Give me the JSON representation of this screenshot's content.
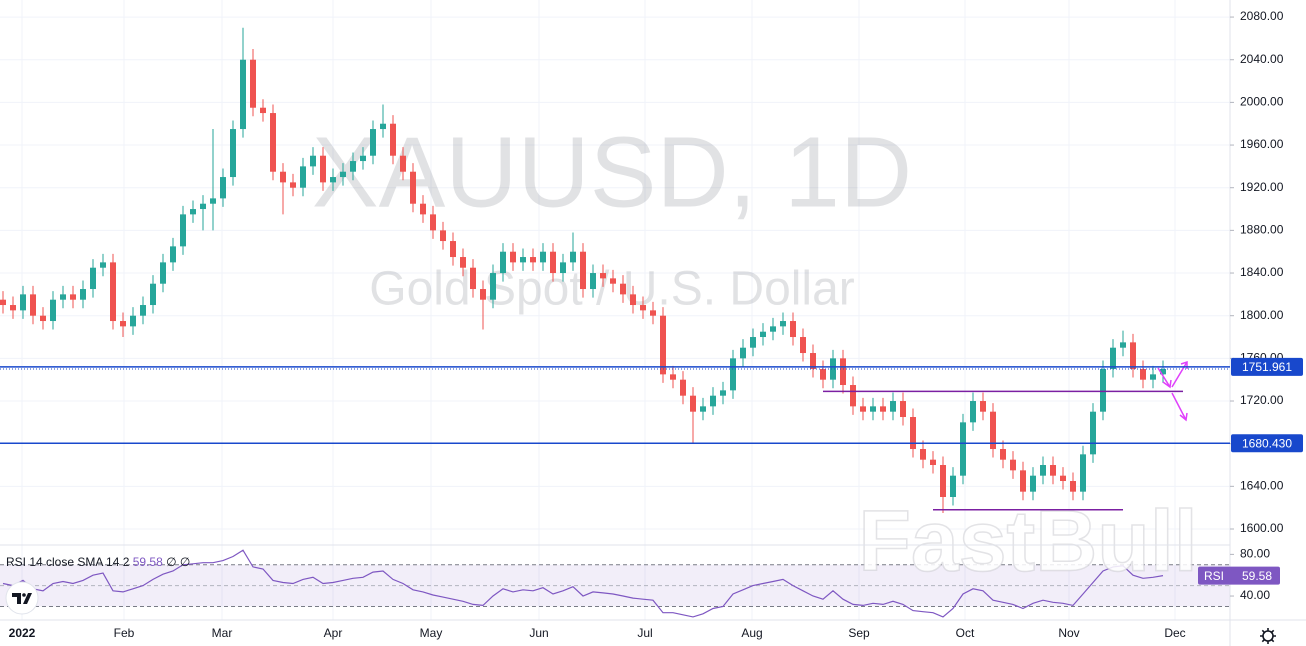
{
  "chart_data": [
    {
      "type": "candlestick",
      "title": "XAUUSD, 1D",
      "subtitle": "Gold Spot / U.S. Dollar",
      "watermark": "FastBull",
      "up_color": "#26a69a",
      "down_color": "#ef5350",
      "x": [
        0,
        1,
        2,
        3,
        4,
        5,
        6,
        7,
        8,
        9,
        10,
        11,
        12,
        13,
        14,
        15,
        16,
        17,
        18,
        19,
        20,
        21,
        22,
        23,
        24,
        25,
        26,
        27,
        28,
        29,
        30,
        31,
        32,
        33,
        34,
        35,
        36,
        37,
        38,
        39,
        40,
        41,
        42,
        43,
        44,
        45,
        46,
        47,
        48,
        49,
        50,
        51,
        52,
        53,
        54,
        55,
        56,
        57,
        58,
        59,
        60,
        61,
        62,
        63,
        64,
        65,
        66,
        67,
        68,
        69,
        70,
        71,
        72,
        73,
        74,
        75,
        76,
        77,
        78,
        79,
        80,
        81,
        82,
        83,
        84,
        85,
        86,
        87,
        88,
        89,
        90,
        91,
        92,
        93,
        94,
        95,
        96,
        97,
        98,
        99,
        100,
        101,
        102,
        103,
        104,
        105,
        106,
        107,
        108,
        109,
        110,
        111,
        112,
        113,
        114,
        115,
        116
      ],
      "open": [
        1815,
        1810,
        1805,
        1820,
        1800,
        1795,
        1815,
        1820,
        1815,
        1825,
        1845,
        1850,
        1795,
        1790,
        1800,
        1810,
        1830,
        1850,
        1865,
        1895,
        1900,
        1905,
        1910,
        1930,
        1975,
        2040,
        1995,
        1990,
        1935,
        1925,
        1920,
        1940,
        1950,
        1925,
        1930,
        1935,
        1945,
        1950,
        1975,
        1980,
        1950,
        1935,
        1905,
        1895,
        1880,
        1870,
        1855,
        1845,
        1825,
        1815,
        1840,
        1860,
        1850,
        1855,
        1850,
        1860,
        1840,
        1850,
        1860,
        1825,
        1840,
        1835,
        1830,
        1820,
        1810,
        1805,
        1800,
        1745,
        1740,
        1725,
        1710,
        1715,
        1725,
        1730,
        1760,
        1770,
        1780,
        1785,
        1790,
        1795,
        1780,
        1765,
        1750,
        1740,
        1760,
        1735,
        1715,
        1710,
        1715,
        1710,
        1720,
        1705,
        1675,
        1665,
        1660,
        1630,
        1650,
        1700,
        1720,
        1710,
        1675,
        1665,
        1655,
        1635,
        1650,
        1660,
        1650,
        1645,
        1635,
        1670,
        1710,
        1750,
        1770,
        1775,
        1750,
        1740,
        1745
      ],
      "high": [
        1823,
        1818,
        1828,
        1828,
        1808,
        1823,
        1828,
        1828,
        1833,
        1853,
        1858,
        1858,
        1803,
        1808,
        1818,
        1838,
        1858,
        1873,
        1903,
        1908,
        1913,
        1975,
        1938,
        1983,
        2070,
        2050,
        2003,
        1998,
        1943,
        1933,
        1948,
        1958,
        1958,
        1938,
        1943,
        1953,
        1958,
        1983,
        1998,
        1988,
        1958,
        1943,
        1913,
        1903,
        1888,
        1878,
        1863,
        1853,
        1833,
        1848,
        1868,
        1868,
        1863,
        1863,
        1868,
        1868,
        1858,
        1878,
        1868,
        1848,
        1848,
        1843,
        1838,
        1828,
        1818,
        1813,
        1808,
        1753,
        1748,
        1733,
        1723,
        1733,
        1738,
        1768,
        1778,
        1788,
        1793,
        1798,
        1803,
        1803,
        1788,
        1773,
        1758,
        1768,
        1768,
        1743,
        1723,
        1723,
        1723,
        1728,
        1728,
        1713,
        1683,
        1673,
        1668,
        1658,
        1708,
        1728,
        1728,
        1718,
        1683,
        1673,
        1663,
        1658,
        1668,
        1668,
        1658,
        1653,
        1678,
        1718,
        1758,
        1778,
        1786,
        1783,
        1758,
        1753,
        1758
      ],
      "low": [
        1802,
        1797,
        1797,
        1792,
        1787,
        1787,
        1807,
        1807,
        1807,
        1817,
        1837,
        1787,
        1780,
        1782,
        1792,
        1802,
        1822,
        1842,
        1857,
        1887,
        1880,
        1880,
        1902,
        1922,
        1967,
        1987,
        1982,
        1927,
        1895,
        1912,
        1912,
        1932,
        1917,
        1917,
        1922,
        1927,
        1937,
        1942,
        1967,
        1942,
        1927,
        1897,
        1887,
        1872,
        1862,
        1847,
        1837,
        1817,
        1787,
        1807,
        1832,
        1842,
        1842,
        1842,
        1842,
        1832,
        1832,
        1842,
        1817,
        1817,
        1827,
        1822,
        1812,
        1802,
        1797,
        1792,
        1737,
        1732,
        1717,
        1681,
        1702,
        1707,
        1717,
        1722,
        1752,
        1762,
        1772,
        1777,
        1782,
        1772,
        1757,
        1742,
        1732,
        1732,
        1727,
        1707,
        1702,
        1702,
        1702,
        1702,
        1697,
        1667,
        1657,
        1652,
        1615,
        1622,
        1642,
        1692,
        1702,
        1667,
        1657,
        1647,
        1627,
        1627,
        1642,
        1642,
        1637,
        1627,
        1627,
        1662,
        1702,
        1742,
        1762,
        1742,
        1732,
        1732,
        1737
      ],
      "close": [
        1810,
        1805,
        1820,
        1800,
        1795,
        1815,
        1820,
        1815,
        1825,
        1845,
        1850,
        1795,
        1790,
        1800,
        1810,
        1830,
        1850,
        1865,
        1895,
        1900,
        1905,
        1910,
        1930,
        1975,
        2040,
        1995,
        1990,
        1935,
        1925,
        1920,
        1940,
        1950,
        1925,
        1930,
        1935,
        1945,
        1950,
        1975,
        1980,
        1950,
        1935,
        1905,
        1895,
        1880,
        1870,
        1855,
        1845,
        1825,
        1815,
        1840,
        1860,
        1850,
        1855,
        1850,
        1860,
        1840,
        1850,
        1860,
        1825,
        1840,
        1835,
        1830,
        1820,
        1810,
        1805,
        1800,
        1745,
        1740,
        1725,
        1710,
        1715,
        1725,
        1730,
        1760,
        1770,
        1780,
        1785,
        1790,
        1795,
        1780,
        1765,
        1750,
        1740,
        1760,
        1735,
        1715,
        1710,
        1715,
        1710,
        1720,
        1705,
        1675,
        1665,
        1660,
        1630,
        1650,
        1700,
        1720,
        1710,
        1675,
        1665,
        1655,
        1635,
        1650,
        1660,
        1650,
        1645,
        1635,
        1670,
        1710,
        1750,
        1770,
        1775,
        1750,
        1740,
        1745,
        1750
      ],
      "xlim": [
        -0.3,
        122.7
      ],
      "xticks": [
        {
          "value": 1.9,
          "label": "2022"
        },
        {
          "value": 12.1,
          "label": "Feb"
        },
        {
          "value": 21.9,
          "label": "Mar"
        },
        {
          "value": 33,
          "label": "Apr"
        },
        {
          "value": 42.8,
          "label": "May"
        },
        {
          "value": 53.6,
          "label": "Jun"
        },
        {
          "value": 64.2,
          "label": "Jul"
        },
        {
          "value": 74.9,
          "label": "Aug"
        },
        {
          "value": 85.6,
          "label": "Sep"
        },
        {
          "value": 96.2,
          "label": "Oct"
        },
        {
          "value": 106.6,
          "label": "Nov"
        },
        {
          "value": 117.2,
          "label": "Dec"
        }
      ],
      "ylim": [
        1585,
        2096
      ],
      "yticks": [
        {
          "value": 1600,
          "label": "1600.00"
        },
        {
          "value": 1640,
          "label": "1640.00"
        },
        {
          "value": 1680,
          "label": "1680.00"
        },
        {
          "value": 1720,
          "label": "1720.00"
        },
        {
          "value": 1760,
          "label": "1760.00"
        },
        {
          "value": 1800,
          "label": "1800.00"
        },
        {
          "value": 1840,
          "label": "1840.00"
        },
        {
          "value": 1880,
          "label": "1880.00"
        },
        {
          "value": 1920,
          "label": "1920.00"
        },
        {
          "value": 1960,
          "label": "1960.00"
        },
        {
          "value": 2000,
          "label": "2000.00"
        },
        {
          "value": 2040,
          "label": "2040.00"
        },
        {
          "value": 2080,
          "label": "2080.00"
        }
      ],
      "grid": true,
      "hlines": [
        {
          "value": 1751.961,
          "color": "#1848cc"
        },
        {
          "value": 1680.43,
          "label": "1680.430",
          "color": "#1848cc"
        }
      ],
      "segments": [
        {
          "value": 1729,
          "x": [
            82,
            118
          ],
          "color": "#7b1fa2"
        },
        {
          "value": 1618,
          "x": [
            93,
            112
          ],
          "color": "#7b1fa2"
        }
      ]
    },
    {
      "type": "line",
      "legend": "RSI 14 close SMA 14 2",
      "legend_extra": "∅ ∅",
      "badge": "RSI",
      "color": "#7e57c2",
      "values": [
        52,
        50,
        55,
        47,
        45,
        52,
        54,
        52,
        55,
        60,
        62,
        45,
        44,
        47,
        50,
        56,
        61,
        64,
        70,
        71,
        72,
        72,
        74,
        78,
        84,
        68,
        66,
        55,
        53,
        52,
        56,
        58,
        52,
        53,
        55,
        57,
        58,
        63,
        64,
        56,
        52,
        46,
        44,
        41,
        39,
        37,
        35,
        32,
        31,
        40,
        47,
        44,
        46,
        45,
        48,
        42,
        45,
        49,
        40,
        44,
        43,
        42,
        40,
        38,
        37,
        36,
        24,
        24,
        22,
        20,
        23,
        28,
        30,
        42,
        46,
        50,
        52,
        54,
        56,
        50,
        45,
        40,
        37,
        45,
        37,
        32,
        31,
        33,
        32,
        35,
        32,
        26,
        25,
        24,
        20,
        28,
        42,
        47,
        45,
        36,
        34,
        32,
        28,
        33,
        36,
        34,
        33,
        31,
        42,
        53,
        64,
        68,
        69,
        60,
        57,
        58,
        59.58
      ],
      "ylim": [
        17,
        89
      ],
      "yticks": [
        {
          "value": 80,
          "label": "80.00"
        },
        {
          "value": 40,
          "label": "40.00"
        }
      ],
      "band": [
        30,
        70
      ],
      "midline": 50
    }
  ]
}
